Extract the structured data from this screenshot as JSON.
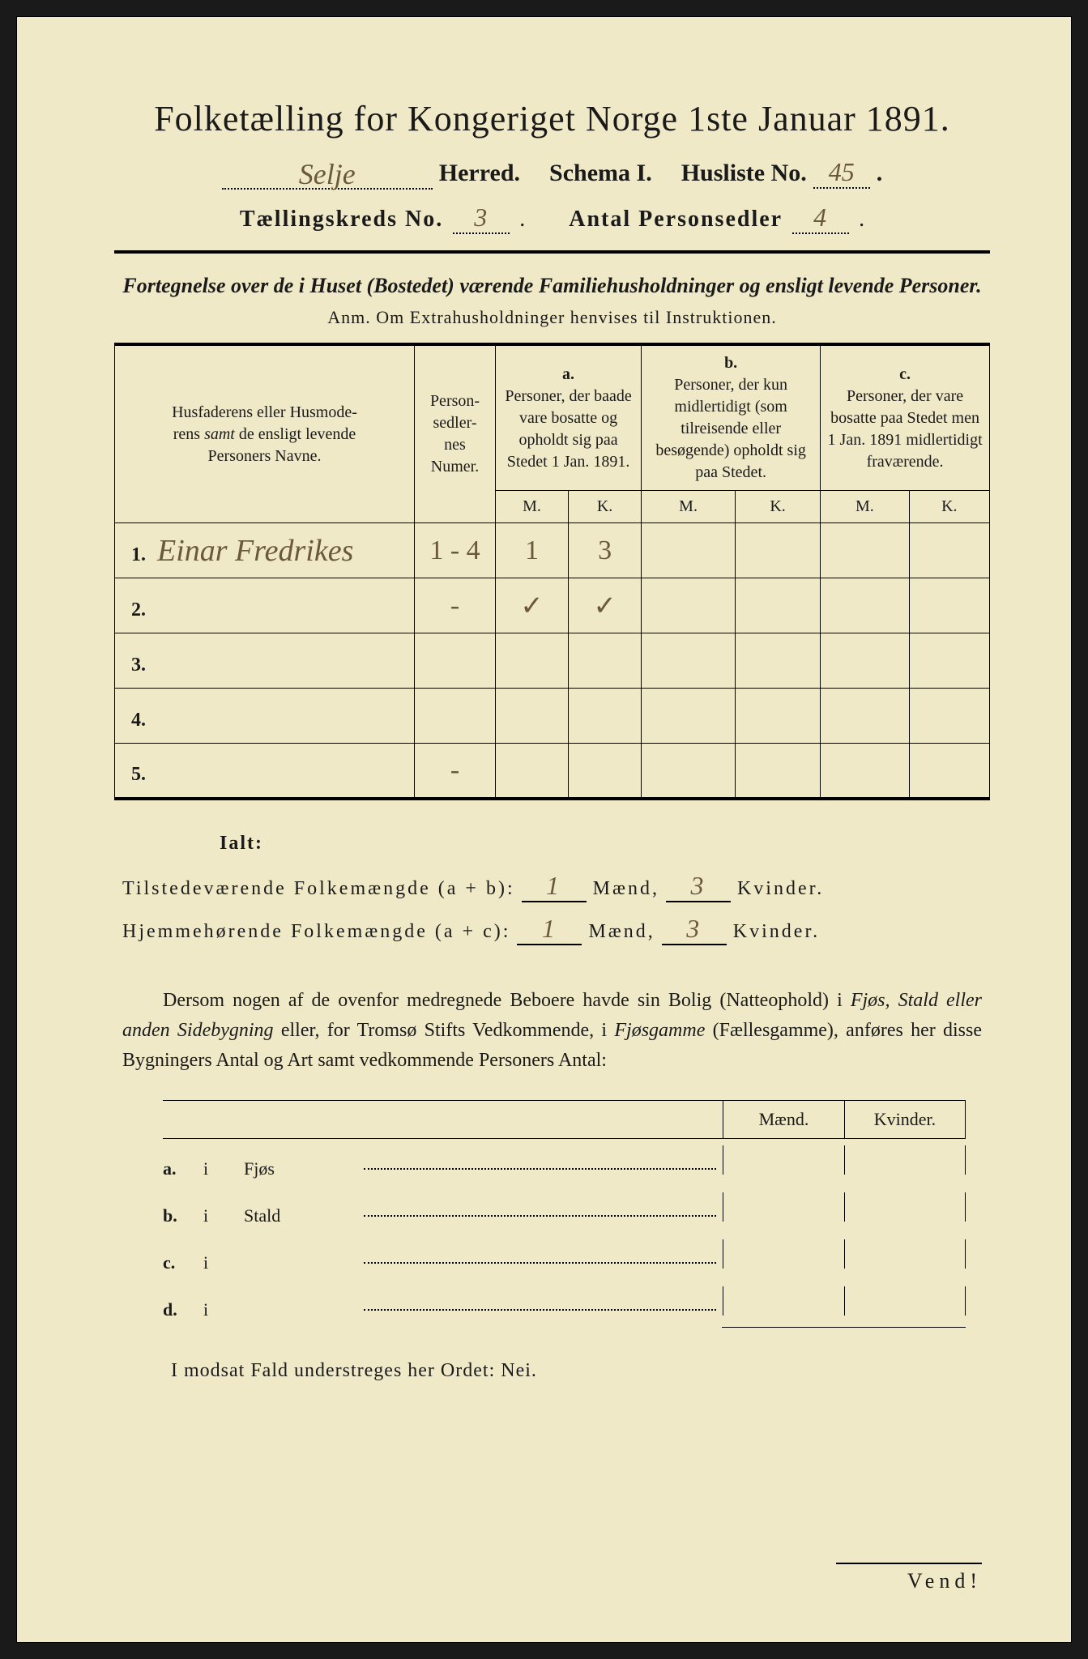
{
  "header": {
    "title_text": "Folketælling for Kongeriget Norge 1ste Januar 1891.",
    "herred_label": "Herred.",
    "herred_value": "Selje",
    "schema_label": "Schema I.",
    "husliste_label": "Husliste No.",
    "husliste_value": "45",
    "kreds_label": "Tællingskreds No.",
    "kreds_value": "3",
    "personsedler_label": "Antal Personsedler",
    "personsedler_value": "4"
  },
  "subtitle": "Fortegnelse over de i Huset (Bostedet) værende Familiehusholdninger og ensligt levende Personer.",
  "anm": "Anm.  Om Extrahusholdninger henvises til Instruktionen.",
  "table": {
    "col1_header": "Husfaderens eller Husmoderens samt de ensligt levende Personers Navne.",
    "col2_header": "Personsedlernes Numer.",
    "col_a_label": "a.",
    "col_a_text": "Personer, der baade vare bosatte og opholdt sig paa Stedet 1 Jan. 1891.",
    "col_b_label": "b.",
    "col_b_text": "Personer, der kun midlertidigt (som tilreisende eller besøgende) opholdt sig paa Stedet.",
    "col_c_label": "c.",
    "col_c_text": "Personer, der vare bosatte paa Stedet men 1 Jan. 1891 midlertidigt fraværende.",
    "m_label": "M.",
    "k_label": "K.",
    "rows": [
      {
        "num": "1.",
        "name": "Einar Fredrikes",
        "numer": "1 - 4",
        "a_m": "1",
        "a_k": "3",
        "b_m": "",
        "b_k": "",
        "c_m": "",
        "c_k": ""
      },
      {
        "num": "2.",
        "name": "",
        "numer": "-",
        "a_m": "✓",
        "a_k": "✓",
        "b_m": "",
        "b_k": "",
        "c_m": "",
        "c_k": ""
      },
      {
        "num": "3.",
        "name": "",
        "numer": "",
        "a_m": "",
        "a_k": "",
        "b_m": "",
        "b_k": "",
        "c_m": "",
        "c_k": ""
      },
      {
        "num": "4.",
        "name": "",
        "numer": "",
        "a_m": "",
        "a_k": "",
        "b_m": "",
        "b_k": "",
        "c_m": "",
        "c_k": ""
      },
      {
        "num": "5.",
        "name": "",
        "numer": "-",
        "a_m": "",
        "a_k": "",
        "b_m": "",
        "b_k": "",
        "c_m": "",
        "c_k": ""
      }
    ]
  },
  "ialt": {
    "title": "Ialt:",
    "row1_label": "Tilstedeværende Folkemængde (a + b):",
    "row1_maend": "1",
    "row1_kvinder": "3",
    "row2_label": "Hjemmehørende Folkemængde (a + c):",
    "row2_maend": "1",
    "row2_kvinder": "3",
    "maend_label": "Mænd,",
    "kvinder_label": "Kvinder."
  },
  "paragraph_text": "Dersom nogen af de ovenfor medregnede Beboere havde sin Bolig (Natteophold) i Fjøs, Stald eller anden Sidebygning eller, for Tromsø Stifts Vedkommende, i Fjøsgamme (Fællesgamme), anføres her disse Bygningers Antal og Art samt vedkommende Personers Antal:",
  "buildings": {
    "hdr_maend": "Mænd.",
    "hdr_kvinder": "Kvinder.",
    "rows": [
      {
        "label": "a.",
        "i": "i",
        "name": "Fjøs"
      },
      {
        "label": "b.",
        "i": "i",
        "name": "Stald"
      },
      {
        "label": "c.",
        "i": "i",
        "name": ""
      },
      {
        "label": "d.",
        "i": "i",
        "name": ""
      }
    ]
  },
  "nei_line": "I modsat Fald understreges her Ordet: Nei.",
  "vend": "Vend!",
  "colors": {
    "page_bg": "#f0e9c8",
    "ink": "#1a1a1a",
    "handwriting": "#6b5a3a"
  }
}
